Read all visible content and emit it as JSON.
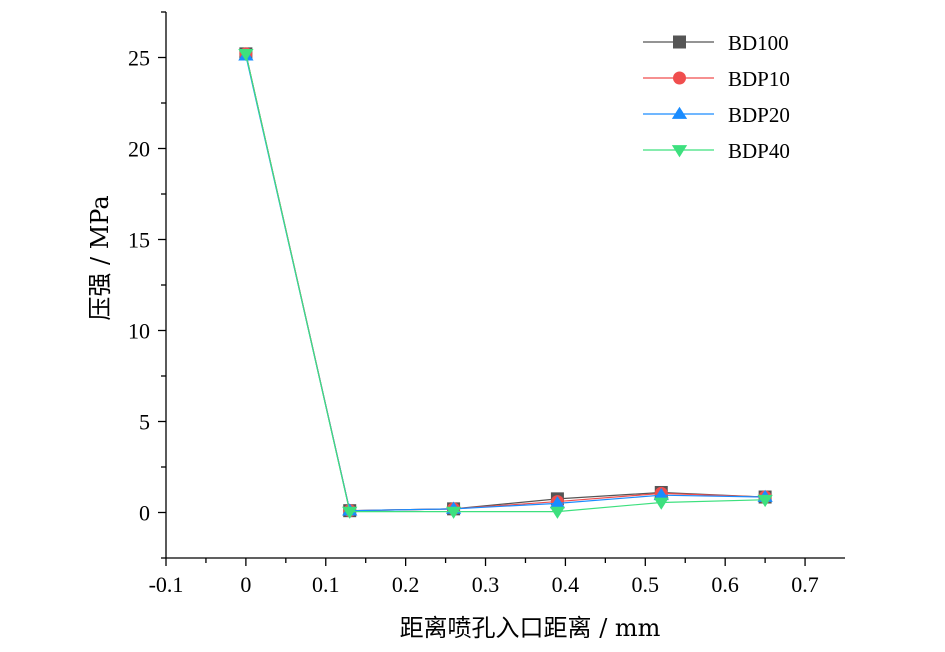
{
  "chart_data": {
    "type": "line",
    "title": "",
    "xlabel": "距离喷孔入口距离 / mm",
    "ylabel": "压强 / MPa",
    "xlim": [
      -0.1,
      0.75
    ],
    "ylim": [
      -2.5,
      27.5
    ],
    "x_ticks": [
      -0.1,
      0,
      0.1,
      0.2,
      0.3,
      0.4,
      0.5,
      0.6,
      0.7
    ],
    "x_tick_labels": [
      "-0.1",
      "0",
      "0.1",
      "0.2",
      "0.3",
      "0.4",
      "0.5",
      "0.6",
      "0.7"
    ],
    "y_ticks": [
      0,
      5,
      10,
      15,
      20,
      25
    ],
    "y_tick_labels": [
      "0",
      "5",
      "10",
      "15",
      "20",
      "25"
    ],
    "grid": false,
    "legend_position": "top-right",
    "x": [
      0,
      0.13,
      0.26,
      0.39,
      0.52,
      0.65
    ],
    "series": [
      {
        "name": "BD100",
        "marker": "square",
        "color": "#555555",
        "values": [
          25.2,
          0.1,
          0.2,
          0.75,
          1.1,
          0.85
        ]
      },
      {
        "name": "BDP10",
        "marker": "circle",
        "color": "#f04e4e",
        "values": [
          25.2,
          0.1,
          0.2,
          0.6,
          1.05,
          0.85
        ]
      },
      {
        "name": "BDP20",
        "marker": "triangle-up",
        "color": "#1a8cff",
        "values": [
          25.1,
          0.1,
          0.2,
          0.5,
          0.95,
          0.85
        ]
      },
      {
        "name": "BDP40",
        "marker": "triangle-down",
        "color": "#3de07e",
        "values": [
          25.2,
          0.05,
          0.05,
          0.05,
          0.55,
          0.7
        ]
      }
    ]
  }
}
